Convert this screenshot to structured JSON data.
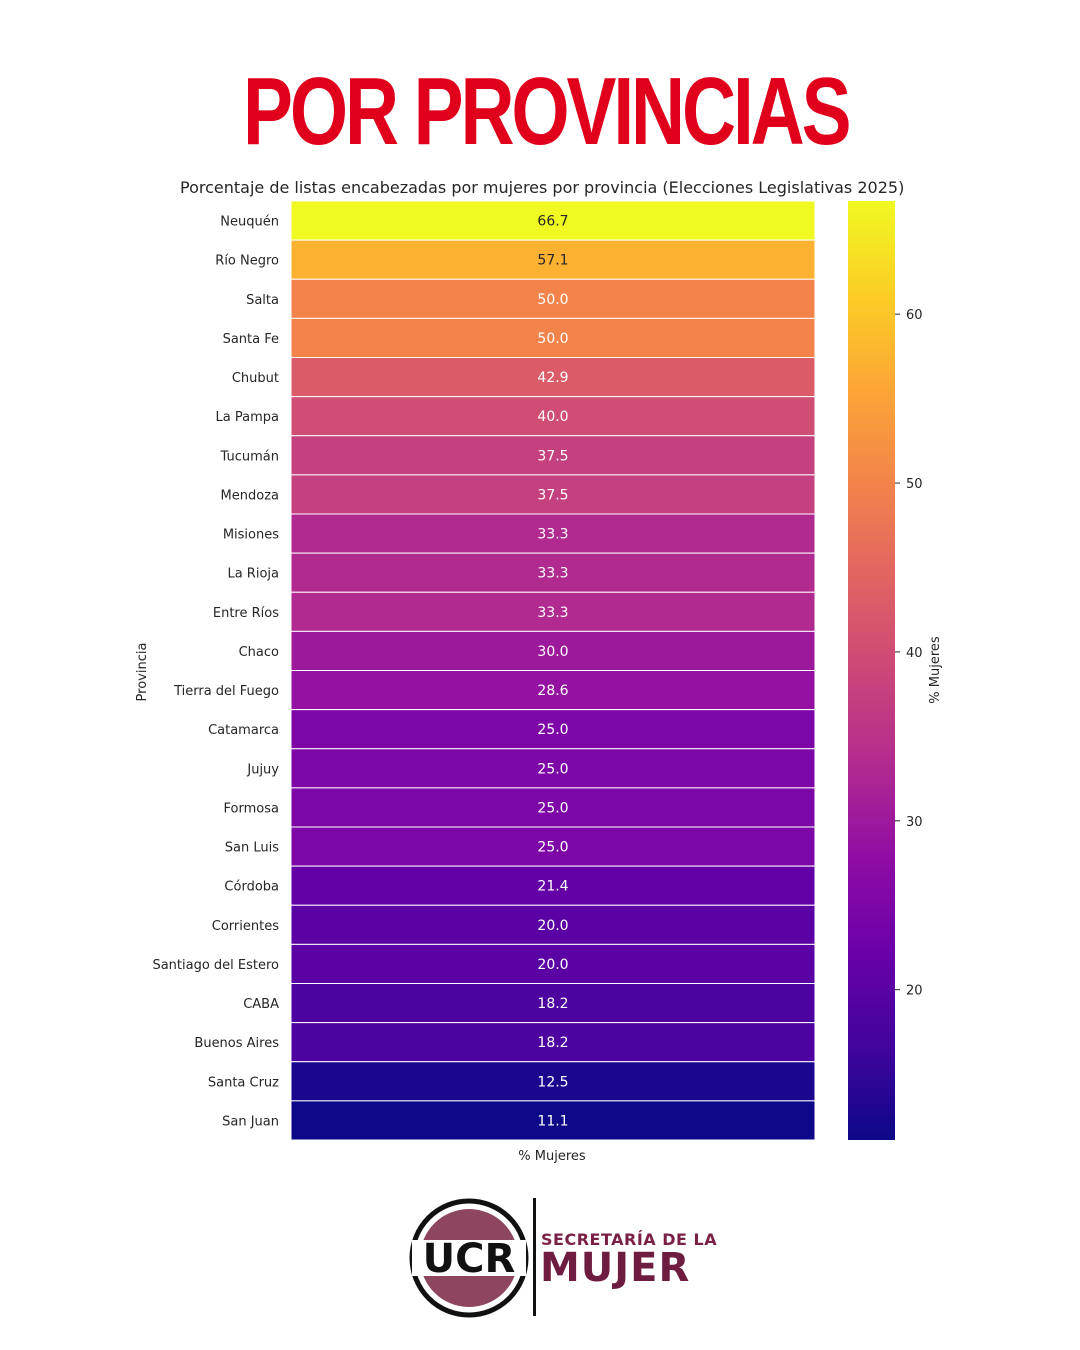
{
  "headline": "POR PROVINCIAS",
  "logo": {
    "acronym": "UCR",
    "line1": "SECRETARÍA DE LA",
    "line2": "MUJER",
    "colors": {
      "ring": "#111111",
      "fill": "#8e4560",
      "text": "#111111",
      "brand": "#6e1d40"
    }
  },
  "chart_data": {
    "type": "heatmap",
    "title": "Porcentaje de listas encabezadas por mujeres por provincia (Elecciones Legislativas 2025)",
    "xlabel": "% Mujeres",
    "ylabel": "Provincia",
    "columns": [
      "% Mujeres"
    ],
    "colormap": "plasma",
    "colorbar": {
      "label": "% Mujeres",
      "range": [
        11.1,
        66.7
      ],
      "ticks": [
        20,
        30,
        40,
        50,
        60
      ]
    },
    "rows": [
      {
        "label": "Neuquén",
        "value": 66.7
      },
      {
        "label": "Río Negro",
        "value": 57.1
      },
      {
        "label": "Salta",
        "value": 50.0
      },
      {
        "label": "Santa Fe",
        "value": 50.0
      },
      {
        "label": "Chubut",
        "value": 42.9
      },
      {
        "label": "La Pampa",
        "value": 40.0
      },
      {
        "label": "Tucumán",
        "value": 37.5
      },
      {
        "label": "Mendoza",
        "value": 37.5
      },
      {
        "label": "Misiones",
        "value": 33.3
      },
      {
        "label": "La Rioja",
        "value": 33.3
      },
      {
        "label": "Entre Ríos",
        "value": 33.3
      },
      {
        "label": "Chaco",
        "value": 30.0
      },
      {
        "label": "Tierra del Fuego",
        "value": 28.6
      },
      {
        "label": "Catamarca",
        "value": 25.0
      },
      {
        "label": "Jujuy",
        "value": 25.0
      },
      {
        "label": "Formosa",
        "value": 25.0
      },
      {
        "label": "San Luis",
        "value": 25.0
      },
      {
        "label": "Córdoba",
        "value": 21.4
      },
      {
        "label": "Corrientes",
        "value": 20.0
      },
      {
        "label": "Santiago del Estero",
        "value": 20.0
      },
      {
        "label": "CABA",
        "value": 18.2
      },
      {
        "label": "Buenos Aires",
        "value": 18.2
      },
      {
        "label": "Santa Cruz",
        "value": 12.5
      },
      {
        "label": "San Juan",
        "value": 11.1
      }
    ]
  }
}
